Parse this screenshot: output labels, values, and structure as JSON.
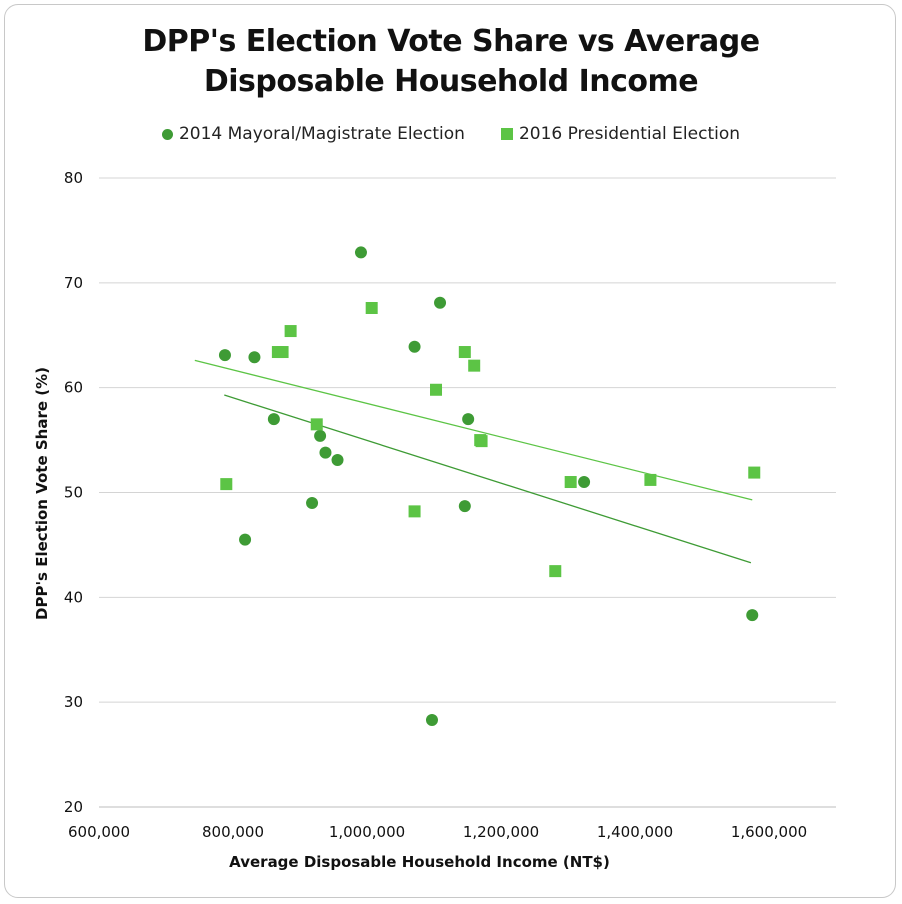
{
  "chart_data": {
    "type": "scatter",
    "title_line1": "DPP's Election Vote Share vs Average",
    "title_line2": "Disposable Household Income",
    "xlabel": "Average Disposable Household Income (NT$)",
    "ylabel": "DPP's Election Vote Share (%)",
    "xlim": [
      600000,
      1700000
    ],
    "ylim": [
      20,
      80
    ],
    "x_ticks": [
      600000,
      800000,
      1000000,
      1200000,
      1400000,
      1600000
    ],
    "x_tick_labels": [
      "600,000",
      "800,000",
      "1,000,000",
      "1,200,000",
      "1,400,000",
      "1,600,000"
    ],
    "y_ticks": [
      20,
      30,
      40,
      50,
      60,
      70,
      80
    ],
    "y_tick_labels": [
      "20",
      "30",
      "40",
      "50",
      "60",
      "70",
      "80"
    ],
    "legend_position": "top",
    "grid": "horizontal",
    "series": [
      {
        "name": "2014 Mayoral/Magistrate Election",
        "marker": "circle",
        "color": "#3e9b35",
        "points": [
          [
            788000,
            63.1
          ],
          [
            832000,
            62.9
          ],
          [
            861000,
            57.0
          ],
          [
            818000,
            45.5
          ],
          [
            918000,
            49.0
          ],
          [
            930000,
            55.4
          ],
          [
            938000,
            53.8
          ],
          [
            956000,
            53.1
          ],
          [
            991000,
            72.9
          ],
          [
            1071000,
            63.9
          ],
          [
            1109000,
            68.1
          ],
          [
            1097000,
            28.3
          ],
          [
            1151000,
            57.0
          ],
          [
            1146000,
            48.7
          ],
          [
            1324000,
            51.0
          ],
          [
            1575000,
            38.3
          ]
        ],
        "trendline": [
          [
            787000,
            59.3
          ],
          [
            1573000,
            43.3
          ]
        ]
      },
      {
        "name": "2016 Presidential Election",
        "marker": "square",
        "color": "#5cc445",
        "points": [
          [
            790000,
            50.8
          ],
          [
            867000,
            63.4
          ],
          [
            874000,
            63.4
          ],
          [
            886000,
            65.4
          ],
          [
            925000,
            56.5
          ],
          [
            1007000,
            67.6
          ],
          [
            1071000,
            48.2
          ],
          [
            1103000,
            59.8
          ],
          [
            1146000,
            63.4
          ],
          [
            1160000,
            62.1
          ],
          [
            1169000,
            55.0
          ],
          [
            1171000,
            54.9
          ],
          [
            1281000,
            42.5
          ],
          [
            1304000,
            51.0
          ],
          [
            1423000,
            51.2
          ],
          [
            1578000,
            51.9
          ]
        ],
        "trendline": [
          [
            743000,
            62.6
          ],
          [
            1575000,
            49.3
          ]
        ]
      }
    ]
  }
}
